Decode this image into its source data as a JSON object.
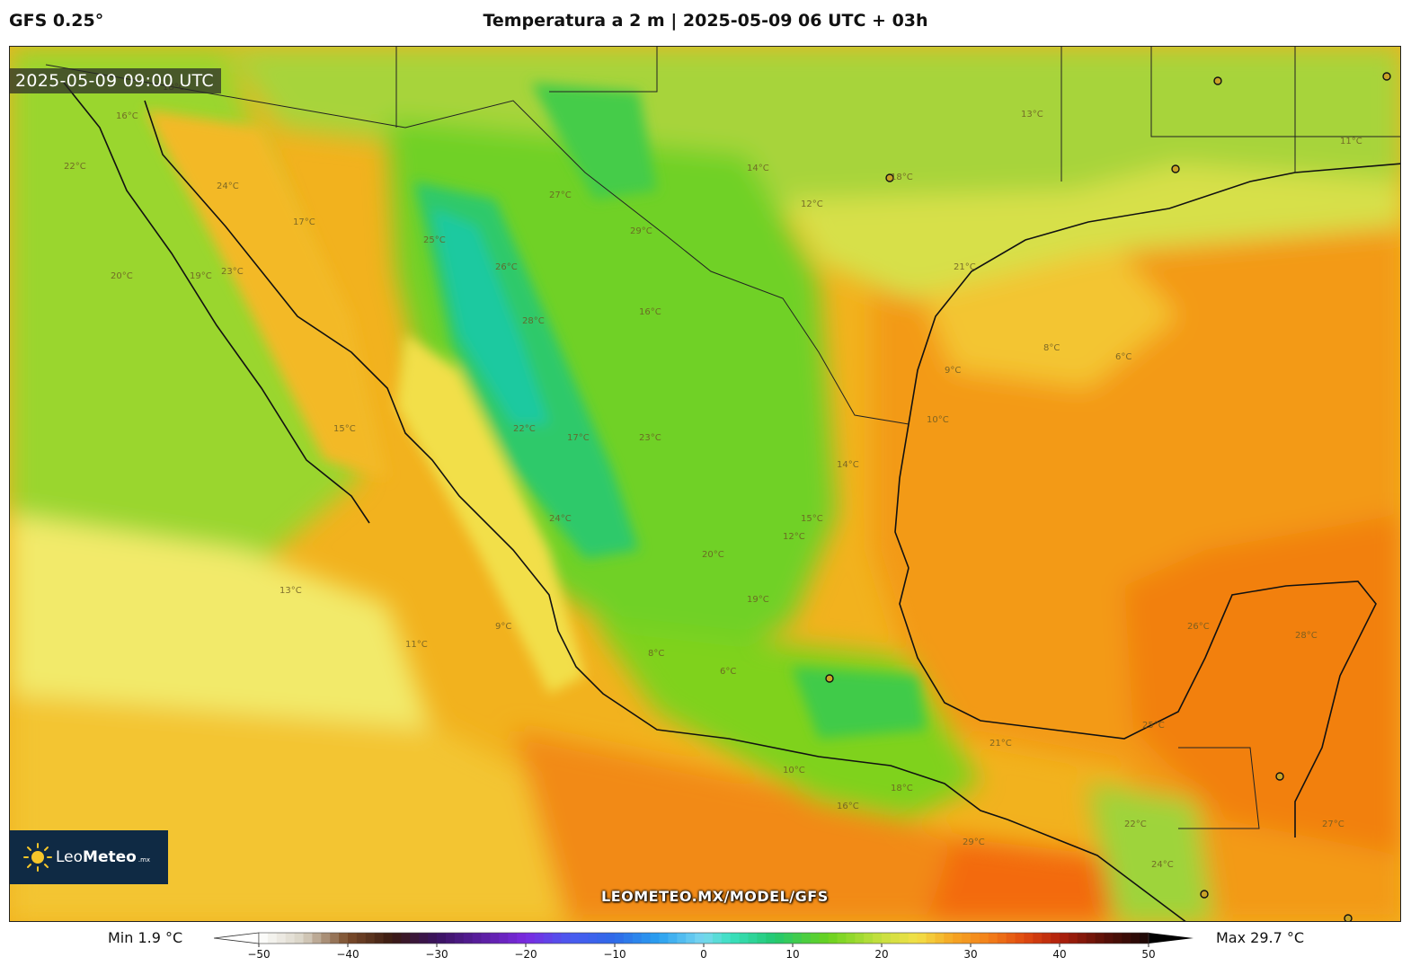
{
  "header": {
    "model": "GFS 0.25°",
    "title": "Temperatura a 2 m | 2025-05-09 06 UTC + 03h"
  },
  "map": {
    "valid_time": "2025-05-09 09:00 UTC",
    "watermark_url": "LEOMETEO.MX/MODEL/GFS",
    "logo": {
      "name_light": "Leo",
      "name_bold": "Meteo",
      "suffix": ".mx"
    },
    "contour_labels": [
      "16°C",
      "18°C",
      "22°C",
      "24°C",
      "17°C",
      "23°C",
      "20°C",
      "19°C",
      "15°C",
      "14°C",
      "12°C",
      "13°C",
      "11°C",
      "9°C",
      "8°C",
      "6°C",
      "10°C",
      "21°C",
      "25°C",
      "26°C",
      "28°C",
      "27°C",
      "29°C"
    ]
  },
  "colorbar": {
    "min_label": "Min 1.9 °C",
    "max_label": "Max 29.7 °C",
    "ticks": [
      "−50",
      "−40",
      "−30",
      "−20",
      "−10",
      "0",
      "10",
      "20",
      "30",
      "40",
      "50"
    ],
    "range": [
      -50,
      50
    ]
  },
  "colors": {
    "warm": "#f28a12",
    "hot": "#f36a0a",
    "mild": "#f5d44a",
    "pale": "#f2ea6a",
    "green": "#7fd21e",
    "cool": "#2ec96a",
    "cold": "#1fc9a0",
    "logo_bg": "#0f2a44"
  }
}
